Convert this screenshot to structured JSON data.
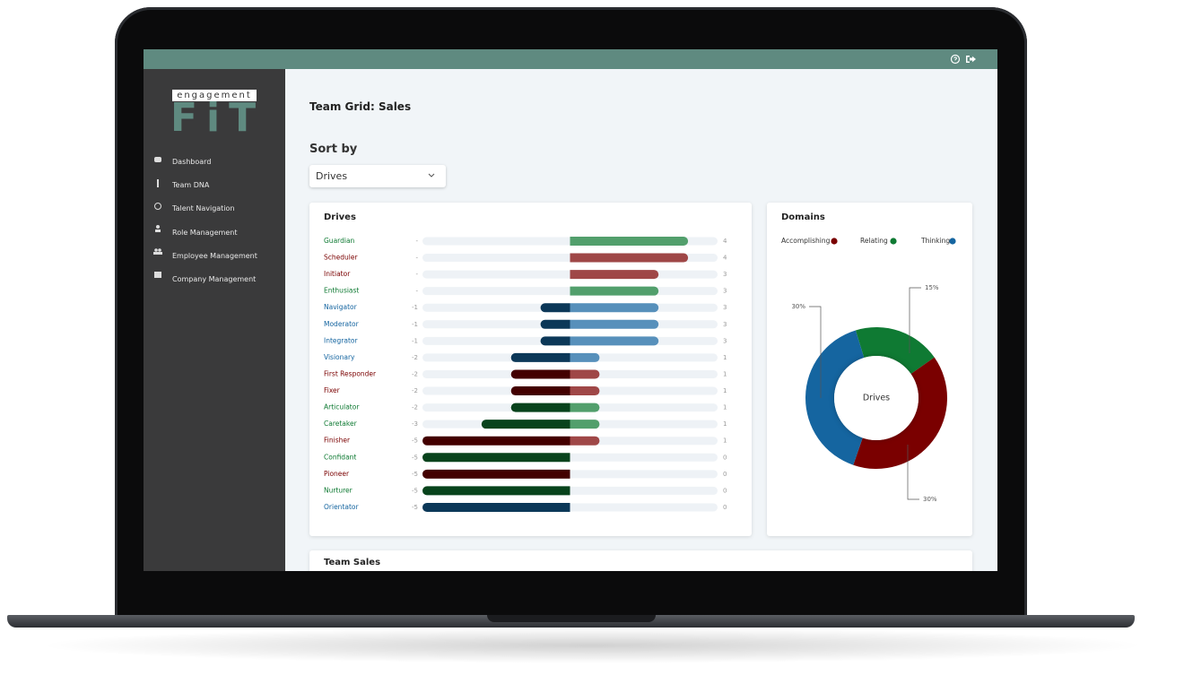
{
  "app": {
    "logo_top": "engagement",
    "logo_bottom": "FiT"
  },
  "nav": [
    "Dashboard",
    "Team DNA",
    "Talent Navigation",
    "Role Management",
    "Employee Management",
    "Company Management"
  ],
  "page": {
    "title": "Team Grid: Sales",
    "sort_label": "Sort by",
    "sort_value": "Drives",
    "section_title": "Team Sales"
  },
  "chart_data": [
    {
      "type": "diverging_bar",
      "title": "Drives",
      "categories": [
        "Guardian",
        "Scheduler",
        "Initiator",
        "Enthusiast",
        "Navigator",
        "Moderator",
        "Integrator",
        "Visionary",
        "First Responder",
        "Fixer",
        "Articulator",
        "Caretaker",
        "Finisher",
        "Confidant",
        "Pioneer",
        "Nurturer",
        "Orientator"
      ],
      "category_colors": [
        "#0f7a33",
        "#7a0000",
        "#7a0000",
        "#0f7a33",
        "#1565a0",
        "#1565a0",
        "#1565a0",
        "#1565a0",
        "#7a0000",
        "#7a0000",
        "#0f7a33",
        "#0f7a33",
        "#7a0000",
        "#0f7a33",
        "#7a0000",
        "#0f7a33",
        "#1565a0"
      ],
      "left_values": [
        0,
        0,
        0,
        0,
        -1,
        -1,
        -1,
        -2,
        -2,
        -2,
        -2,
        -3,
        -5,
        -5,
        -5,
        -5,
        -5
      ],
      "left_value_labels": [
        "-",
        "-",
        "-",
        "-",
        "-1",
        "-1",
        "-1",
        "-2",
        "-2",
        "-2",
        "-2",
        "-3",
        "-5",
        "-5",
        "-5",
        "-5",
        "-5"
      ],
      "right_values": [
        4,
        4,
        3,
        3,
        3,
        3,
        3,
        1,
        1,
        1,
        1,
        1,
        1,
        0,
        0,
        0,
        0
      ],
      "xlim": [
        -5,
        5
      ]
    },
    {
      "type": "donut",
      "title": "Domains",
      "categories": [
        "Accomplishing",
        "Relating",
        "Thinking"
      ],
      "colors": [
        "#7a0000",
        "#0f7a33",
        "#1565a0"
      ],
      "values": [
        30,
        15,
        30
      ],
      "value_labels": [
        "30%",
        "15%",
        "30%"
      ],
      "center_label": "Drives"
    }
  ]
}
